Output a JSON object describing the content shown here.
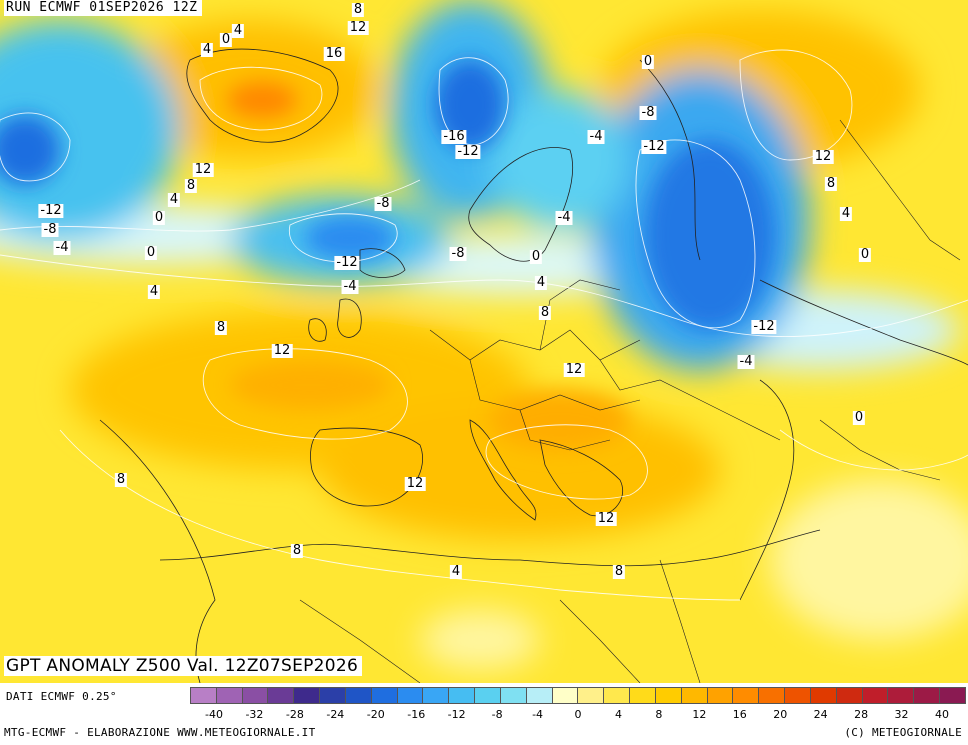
{
  "header": {
    "run_label": "RUN ECMWF 01SEP2026 12Z"
  },
  "map": {
    "title": "GPT ANOMALY Z500 Val. 12Z07SEP2026",
    "contour_labels": [
      {
        "text": "8"
      },
      {
        "text": "12"
      },
      {
        "text": "4"
      },
      {
        "text": "0"
      },
      {
        "text": "4"
      },
      {
        "text": "16"
      },
      {
        "text": "0"
      },
      {
        "text": "-16"
      },
      {
        "text": "-12"
      },
      {
        "text": "-4"
      },
      {
        "text": "-8"
      },
      {
        "text": "-12"
      },
      {
        "text": "12"
      },
      {
        "text": "8"
      },
      {
        "text": "4"
      },
      {
        "text": "0"
      },
      {
        "text": "-12"
      },
      {
        "text": "-8"
      },
      {
        "text": "-4"
      },
      {
        "text": "0"
      },
      {
        "text": "-8"
      },
      {
        "text": "-4"
      },
      {
        "text": "12"
      },
      {
        "text": "8"
      },
      {
        "text": "4"
      },
      {
        "text": "-12"
      },
      {
        "text": "-4"
      },
      {
        "text": "-8"
      },
      {
        "text": "0"
      },
      {
        "text": "4"
      },
      {
        "text": "0"
      },
      {
        "text": "4"
      },
      {
        "text": "8"
      },
      {
        "text": "8"
      },
      {
        "text": "12"
      },
      {
        "text": "12"
      },
      {
        "text": "-12"
      },
      {
        "text": "-4"
      },
      {
        "text": "0"
      },
      {
        "text": "8"
      },
      {
        "text": "12"
      },
      {
        "text": "12"
      },
      {
        "text": "8"
      },
      {
        "text": "4"
      },
      {
        "text": "8"
      }
    ]
  },
  "footer": {
    "data_source": "DATI ECMWF 0.25°",
    "credits_left": "MTG-ECMWF - ELABORAZIONE WWW.METEOGIORNALE.IT",
    "credits_right": "(C) METEOGIORNALE"
  },
  "legend": {
    "colors": [
      "#b87fc6",
      "#9f63b4",
      "#8a4fa4",
      "#6a3b96",
      "#3e2a8c",
      "#2b3fa8",
      "#1f55c6",
      "#1f6ee0",
      "#2b8cf0",
      "#39a6f5",
      "#46bdf2",
      "#5ad0f0",
      "#7fe0f2",
      "#b7eef7",
      "#ffffc8",
      "#fff08a",
      "#ffe84d",
      "#ffdb1a",
      "#ffcc00",
      "#ffb800",
      "#ffa200",
      "#ff8c00",
      "#f87000",
      "#ee5300",
      "#e03a00",
      "#cf2a10",
      "#c01e2a",
      "#ad1c3a",
      "#9c1a46",
      "#8a1a52"
    ],
    "ticks": [
      "-40",
      "-32",
      "-28",
      "-24",
      "-20",
      "-16",
      "-12",
      "-8",
      "-4",
      "0",
      "4",
      "8",
      "12",
      "16",
      "20",
      "24",
      "28",
      "32",
      "40"
    ]
  }
}
